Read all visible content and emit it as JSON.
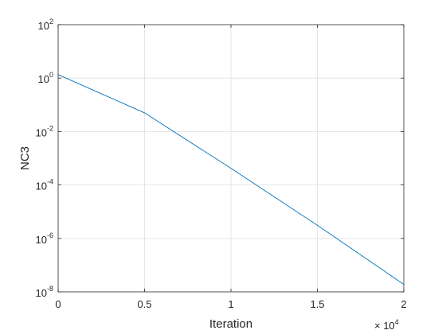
{
  "chart_data": {
    "type": "line",
    "xlabel": "Iteration",
    "ylabel": "NC3",
    "x_exponent_label": "× 10",
    "x_exponent": "4",
    "xlim": [
      0,
      20000
    ],
    "ylim": [
      1e-08,
      100
    ],
    "yscale": "log",
    "grid": true,
    "x_ticks": [
      {
        "value": 0,
        "label": "0"
      },
      {
        "value": 5000,
        "label": "0.5"
      },
      {
        "value": 10000,
        "label": "1"
      },
      {
        "value": 15000,
        "label": "1.5"
      },
      {
        "value": 20000,
        "label": "2"
      }
    ],
    "y_ticks": [
      {
        "value": 100.0,
        "base": "10",
        "exp": "2"
      },
      {
        "value": 1.0,
        "base": "10",
        "exp": "0"
      },
      {
        "value": 0.01,
        "base": "10",
        "exp": "-2"
      },
      {
        "value": 0.0001,
        "base": "10",
        "exp": "-4"
      },
      {
        "value": 1e-06,
        "base": "10",
        "exp": "-6"
      },
      {
        "value": 1e-08,
        "base": "10",
        "exp": "-8"
      }
    ],
    "series": [
      {
        "color": "#0072BD",
        "points": [
          [
            0,
            1.35
          ],
          [
            5000,
            0.05
          ],
          [
            10000,
            0.00042
          ],
          [
            15000,
            3.1e-06
          ],
          [
            20000,
            1.9e-08
          ]
        ]
      }
    ]
  }
}
